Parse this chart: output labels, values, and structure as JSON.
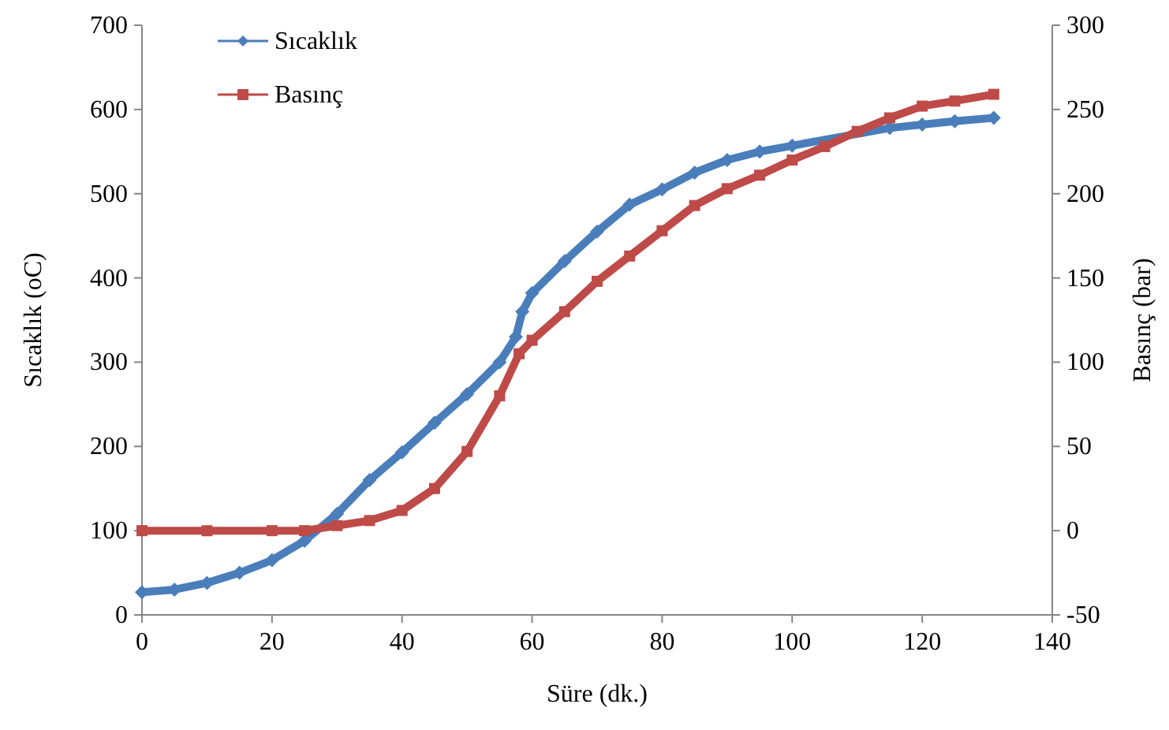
{
  "chart_data": {
    "type": "line",
    "xlabel": "Süre (dk.)",
    "ylabel": "Sıcaklık (oC)",
    "y2label": "Basınç (bar)",
    "xlim": [
      0,
      140
    ],
    "xticks": [
      0,
      20,
      40,
      60,
      80,
      100,
      120,
      140
    ],
    "ylim": [
      0,
      700
    ],
    "yticks": [
      0,
      100,
      200,
      300,
      400,
      500,
      600,
      700
    ],
    "y2lim": [
      -50,
      300
    ],
    "y2ticks": [
      -50,
      0,
      50,
      100,
      150,
      200,
      250,
      300
    ],
    "grid": false,
    "legend": "top left",
    "series": [
      {
        "name": "Sıcaklık",
        "color": "#4a7ebb",
        "marker": "diamond",
        "x": [
          0,
          5,
          10,
          15,
          20,
          25,
          30,
          35,
          40,
          45,
          50,
          55,
          57.5,
          58.5,
          60,
          65,
          70,
          75,
          80,
          85,
          90,
          95,
          100,
          115,
          120,
          125,
          131
        ],
        "values": [
          27,
          30,
          38,
          50,
          65,
          88,
          120,
          160,
          193,
          228,
          262,
          300,
          330,
          360,
          382,
          420,
          455,
          487,
          505,
          525,
          540,
          550,
          557,
          578,
          582,
          586,
          590
        ]
      },
      {
        "name": "Basınç",
        "color": "#be4b48",
        "marker": "square",
        "axis": "y2",
        "x": [
          0,
          10,
          20,
          25,
          30,
          35,
          40,
          45,
          50,
          55,
          58,
          60,
          65,
          70,
          75,
          80,
          85,
          90,
          95,
          100,
          105,
          110,
          115,
          120,
          125,
          131
        ],
        "values": [
          0,
          0,
          0,
          0,
          3,
          6,
          12,
          25,
          47,
          80,
          105,
          113,
          130,
          148,
          163,
          178,
          193,
          203,
          211,
          220,
          228,
          237,
          245,
          252,
          255,
          259
        ]
      }
    ]
  }
}
